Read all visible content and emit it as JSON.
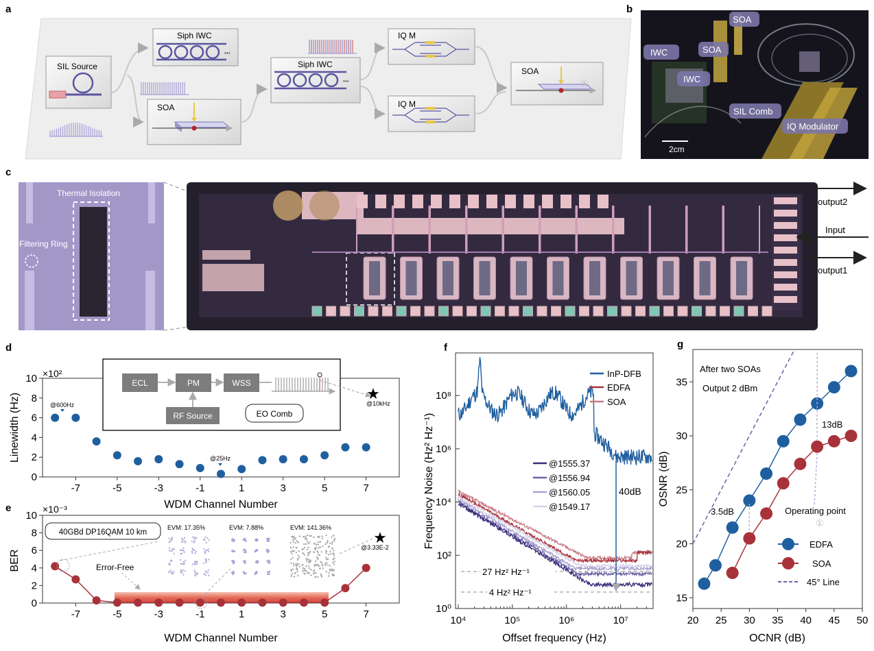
{
  "panel_letters": {
    "a": "a",
    "b": "b",
    "c": "c",
    "d": "d",
    "e": "e",
    "f": "f",
    "g": "g"
  },
  "panel_a": {
    "sil_source": "SIL Source",
    "siph_iwc_1": "Siph IWC",
    "siph_iwc_2": "Siph IWC",
    "soa_1": "SOA",
    "iqm_1": "IQ M",
    "iqm_2": "IQ M",
    "soa_2": "SOA",
    "ellipsis": "•••",
    "circled_1": "①"
  },
  "panel_b": {
    "labels": [
      "SOA",
      "IWC",
      "SOA",
      "IWC",
      "SIL Comb",
      "IQ Modulator"
    ],
    "scale": "2cm"
  },
  "panel_c": {
    "thermal_isolation": "Thermal Isolation",
    "filtering_ring": "Filtering Ring",
    "output2": "output2",
    "input": "Input",
    "output1": "output1"
  },
  "chart_data": [
    {
      "id": "d",
      "type": "scatter",
      "x": [
        -8,
        -7,
        -6,
        -5,
        -4,
        -3,
        -2,
        -1,
        0,
        1,
        2,
        3,
        4,
        5,
        6,
        7
      ],
      "y": [
        6.0,
        6.0,
        3.6,
        2.2,
        1.6,
        1.8,
        1.3,
        0.9,
        0.3,
        0.8,
        1.7,
        1.8,
        1.8,
        2.2,
        3.0,
        3.0
      ],
      "xlabel": "WDM Channel Number",
      "ylabel": "Linewidth (Hz)",
      "multiplier": "×10²",
      "xticks": [
        "-7",
        "-5",
        "-3",
        "-1",
        "1",
        "3",
        "5",
        "7"
      ],
      "yticks": [
        "0",
        "2",
        "4",
        "6",
        "8",
        "10"
      ],
      "ylim": [
        0,
        10
      ],
      "annotations": [
        "@600Hz",
        "@25Hz",
        "@10kHz"
      ],
      "inset": {
        "ecl": "ECL",
        "pm": "PM",
        "wss": "WSS",
        "rf": "RF Source",
        "eo": "EO Comb"
      }
    },
    {
      "id": "e",
      "type": "line",
      "x": [
        -8,
        -7,
        -6,
        -5,
        -4,
        -3,
        -2,
        -1,
        0,
        1,
        2,
        3,
        4,
        5,
        6,
        7
      ],
      "y": [
        4.2,
        2.7,
        0.3,
        0.05,
        0.05,
        0.05,
        0.05,
        0.05,
        0.05,
        0.05,
        0.05,
        0.05,
        0.05,
        0.05,
        1.7,
        4.0
      ],
      "xlabel": "WDM Channel Number",
      "ylabel": "BER",
      "multiplier": "×10⁻³",
      "xticks": [
        "-7",
        "-5",
        "-3",
        "-1",
        "1",
        "3",
        "5",
        "7"
      ],
      "yticks": [
        "0",
        "2",
        "4",
        "6",
        "8",
        "10"
      ],
      "ylim": [
        0,
        10
      ],
      "annotations": [
        "40GBd  DP16QAM  10 km",
        "EVM: 17.35%",
        "EVM: 7.88%",
        "EVM: 141.36%",
        "Error-Free",
        "@3.33E-2"
      ]
    },
    {
      "id": "f",
      "type": "line",
      "xlabel": "Offset frequency (Hz)",
      "ylabel": "Frequency Noise (Hz² Hz⁻¹)",
      "xscale": "log",
      "yscale": "log",
      "xticks": [
        "10⁴",
        "10⁵",
        "10⁶",
        "10⁷"
      ],
      "yticks": [
        "10⁰",
        "10²",
        "10⁴",
        "10⁶",
        "10⁸"
      ],
      "legend": [
        "InP-DFB",
        "EDFA",
        "SOA"
      ],
      "legend2": [
        "@1555.37",
        "@1556.94",
        "@1560.05",
        "@1549.17"
      ],
      "annotations": [
        "40dB",
        "27 Hz² Hz⁻¹",
        "4 Hz² Hz⁻¹"
      ],
      "colors": {
        "inp": "#1f5fa0",
        "edfa": "#a8323a",
        "soa": "#c77a82",
        "c1": "#3a2f7a",
        "c2": "#6a62a8",
        "c3": "#a9a3cf",
        "c4": "#d7d2ea"
      }
    },
    {
      "id": "g",
      "type": "line",
      "xlabel": "OCNR (dB)",
      "ylabel": "OSNR (dB)",
      "xticks": [
        "20",
        "25",
        "30",
        "35",
        "40",
        "45",
        "50"
      ],
      "yticks": [
        "15",
        "20",
        "25",
        "30",
        "35"
      ],
      "xlim": [
        20,
        50
      ],
      "ylim": [
        14,
        38
      ],
      "series": [
        {
          "name": "EDFA",
          "x": [
            22,
            24,
            27,
            30,
            33,
            36,
            39,
            42,
            45,
            48
          ],
          "y": [
            16.3,
            18.0,
            21.5,
            24.0,
            26.5,
            29.5,
            31.5,
            33.0,
            34.5,
            36.0
          ],
          "color": "#1f5fa0"
        },
        {
          "name": "SOA",
          "x": [
            27,
            30,
            33,
            36,
            39,
            42,
            45,
            48
          ],
          "y": [
            17.3,
            20.5,
            22.8,
            25.6,
            27.4,
            29.0,
            29.5,
            30.0
          ],
          "color": "#a8323a"
        }
      ],
      "legend": [
        "EDFA",
        "SOA",
        "45° Line"
      ],
      "annotations": [
        "After two SOAs",
        "Output 2 dBm",
        "3.5dB",
        "13dB",
        "Operating point",
        "①"
      ]
    }
  ]
}
